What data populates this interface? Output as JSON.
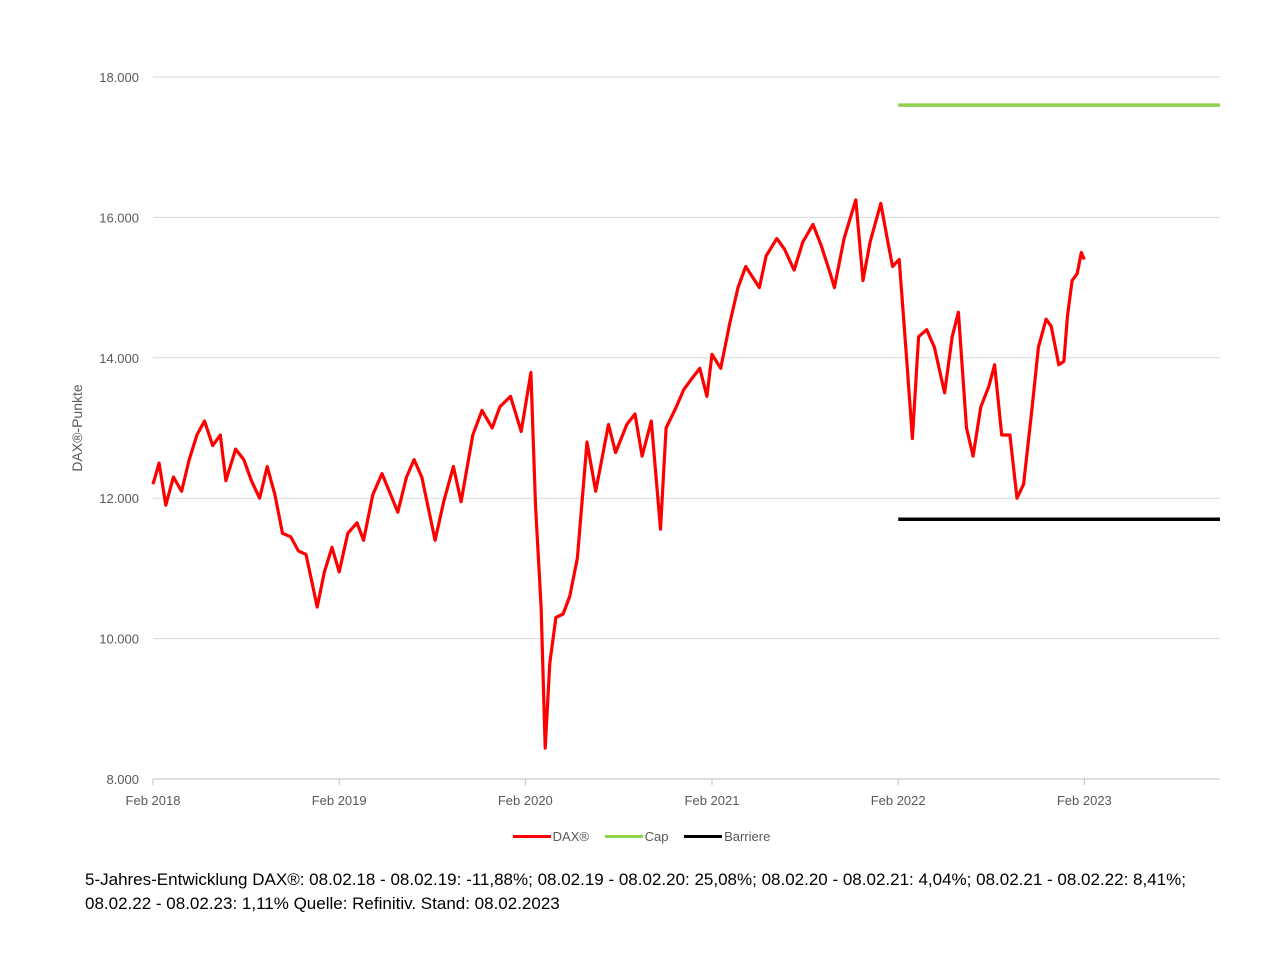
{
  "chart_data": {
    "type": "line",
    "ylabel": "DAX®-Punkte",
    "xlabel": "",
    "ylim": [
      8000,
      18000
    ],
    "y_ticks": [
      8000,
      10000,
      12000,
      14000,
      16000,
      18000
    ],
    "y_tick_labels": [
      "8.000",
      "10.000",
      "12.000",
      "14.000",
      "16.000",
      "18.000"
    ],
    "x_range": [
      "2018-02-08",
      "2023-11-01"
    ],
    "x_ticks": [
      "2018-02-08",
      "2019-02-08",
      "2020-02-08",
      "2021-02-08",
      "2022-02-08",
      "2023-02-08"
    ],
    "x_tick_labels": [
      "Feb 2018",
      "Feb 2019",
      "Feb 2020",
      "Feb 2021",
      "Feb 2022",
      "Feb 2023"
    ],
    "grid": "horizontal",
    "legend_position": "bottom",
    "series": [
      {
        "name": "DAX®",
        "color": "#ff0000",
        "points": [
          [
            "2018-02-08",
            12200
          ],
          [
            "2018-02-20",
            12500
          ],
          [
            "2018-03-05",
            11900
          ],
          [
            "2018-03-20",
            12300
          ],
          [
            "2018-04-05",
            12100
          ],
          [
            "2018-04-20",
            12550
          ],
          [
            "2018-05-05",
            12900
          ],
          [
            "2018-05-20",
            13100
          ],
          [
            "2018-06-05",
            12750
          ],
          [
            "2018-06-20",
            12900
          ],
          [
            "2018-07-01",
            12250
          ],
          [
            "2018-07-20",
            12700
          ],
          [
            "2018-08-05",
            12550
          ],
          [
            "2018-08-20",
            12250
          ],
          [
            "2018-09-05",
            12000
          ],
          [
            "2018-09-20",
            12450
          ],
          [
            "2018-10-05",
            12050
          ],
          [
            "2018-10-20",
            11500
          ],
          [
            "2018-11-05",
            11450
          ],
          [
            "2018-11-20",
            11250
          ],
          [
            "2018-12-05",
            11200
          ],
          [
            "2018-12-27",
            10450
          ],
          [
            "2019-01-10",
            10950
          ],
          [
            "2019-01-25",
            11300
          ],
          [
            "2019-02-08",
            10950
          ],
          [
            "2019-02-25",
            11500
          ],
          [
            "2019-03-15",
            11650
          ],
          [
            "2019-03-28",
            11400
          ],
          [
            "2019-04-15",
            12050
          ],
          [
            "2019-05-03",
            12350
          ],
          [
            "2019-05-20",
            12050
          ],
          [
            "2019-06-03",
            11800
          ],
          [
            "2019-06-20",
            12300
          ],
          [
            "2019-07-05",
            12550
          ],
          [
            "2019-07-20",
            12300
          ],
          [
            "2019-08-15",
            11400
          ],
          [
            "2019-09-01",
            11950
          ],
          [
            "2019-09-20",
            12450
          ],
          [
            "2019-10-05",
            11950
          ],
          [
            "2019-10-28",
            12900
          ],
          [
            "2019-11-15",
            13250
          ],
          [
            "2019-12-05",
            13000
          ],
          [
            "2019-12-20",
            13300
          ],
          [
            "2020-01-10",
            13450
          ],
          [
            "2020-01-31",
            12950
          ],
          [
            "2020-02-19",
            13790
          ],
          [
            "2020-02-28",
            11900
          ],
          [
            "2020-03-10",
            10450
          ],
          [
            "2020-03-18",
            8440
          ],
          [
            "2020-03-27",
            9650
          ],
          [
            "2020-04-08",
            10300
          ],
          [
            "2020-04-22",
            10350
          ],
          [
            "2020-05-05",
            10600
          ],
          [
            "2020-05-20",
            11150
          ],
          [
            "2020-06-08",
            12800
          ],
          [
            "2020-06-25",
            12100
          ],
          [
            "2020-07-20",
            13050
          ],
          [
            "2020-08-03",
            12650
          ],
          [
            "2020-08-25",
            13050
          ],
          [
            "2020-09-10",
            13200
          ],
          [
            "2020-09-24",
            12600
          ],
          [
            "2020-10-12",
            13100
          ],
          [
            "2020-10-30",
            11560
          ],
          [
            "2020-11-10",
            13000
          ],
          [
            "2020-11-30",
            13300
          ],
          [
            "2020-12-15",
            13550
          ],
          [
            "2020-12-30",
            13700
          ],
          [
            "2021-01-15",
            13850
          ],
          [
            "2021-01-29",
            13450
          ],
          [
            "2021-02-08",
            14050
          ],
          [
            "2021-02-25",
            13850
          ],
          [
            "2021-03-15",
            14500
          ],
          [
            "2021-03-31",
            15000
          ],
          [
            "2021-04-15",
            15300
          ],
          [
            "2021-05-12",
            15000
          ],
          [
            "2021-05-25",
            15450
          ],
          [
            "2021-06-15",
            15700
          ],
          [
            "2021-06-30",
            15550
          ],
          [
            "2021-07-19",
            15250
          ],
          [
            "2021-08-05",
            15650
          ],
          [
            "2021-08-25",
            15900
          ],
          [
            "2021-09-10",
            15600
          ],
          [
            "2021-09-28",
            15200
          ],
          [
            "2021-10-06",
            15000
          ],
          [
            "2021-10-25",
            15700
          ],
          [
            "2021-11-17",
            16250
          ],
          [
            "2021-12-01",
            15100
          ],
          [
            "2021-12-15",
            15650
          ],
          [
            "2022-01-05",
            16200
          ],
          [
            "2022-01-20",
            15600
          ],
          [
            "2022-01-28",
            15300
          ],
          [
            "2022-02-10",
            15400
          ],
          [
            "2022-02-24",
            14050
          ],
          [
            "2022-03-08",
            12850
          ],
          [
            "2022-03-20",
            14300
          ],
          [
            "2022-04-05",
            14400
          ],
          [
            "2022-04-20",
            14150
          ],
          [
            "2022-05-10",
            13500
          ],
          [
            "2022-05-25",
            14300
          ],
          [
            "2022-06-06",
            14650
          ],
          [
            "2022-06-22",
            13000
          ],
          [
            "2022-07-05",
            12600
          ],
          [
            "2022-07-20",
            13300
          ],
          [
            "2022-08-05",
            13600
          ],
          [
            "2022-08-16",
            13900
          ],
          [
            "2022-08-30",
            12900
          ],
          [
            "2022-09-15",
            12900
          ],
          [
            "2022-09-29",
            12000
          ],
          [
            "2022-10-12",
            12200
          ],
          [
            "2022-10-28",
            13250
          ],
          [
            "2022-11-10",
            14150
          ],
          [
            "2022-11-25",
            14550
          ],
          [
            "2022-12-05",
            14450
          ],
          [
            "2022-12-20",
            13900
          ],
          [
            "2022-12-30",
            13950
          ],
          [
            "2023-01-06",
            14600
          ],
          [
            "2023-01-15",
            15100
          ],
          [
            "2023-01-25",
            15200
          ],
          [
            "2023-02-02",
            15500
          ],
          [
            "2023-02-08",
            15400
          ]
        ]
      },
      {
        "name": "Cap",
        "color": "#92d050",
        "points": [
          [
            "2022-02-08",
            17600
          ],
          [
            "2023-11-01",
            17600
          ]
        ]
      },
      {
        "name": "Barriere",
        "color": "#000000",
        "points": [
          [
            "2022-02-08",
            11700
          ],
          [
            "2023-11-01",
            11700
          ]
        ]
      }
    ]
  },
  "caption": "5-Jahres-Entwicklung DAX®: 08.02.18 - 08.02.19: -11,88%; 08.02.19 - 08.02.20: 25,08%; 08.02.20 - 08.02.21: 4,04%; 08.02.21 - 08.02.22: 8,41%; 08.02.22 - 08.02.23: 1,11% Quelle: Refinitiv. Stand: 08.02.2023"
}
